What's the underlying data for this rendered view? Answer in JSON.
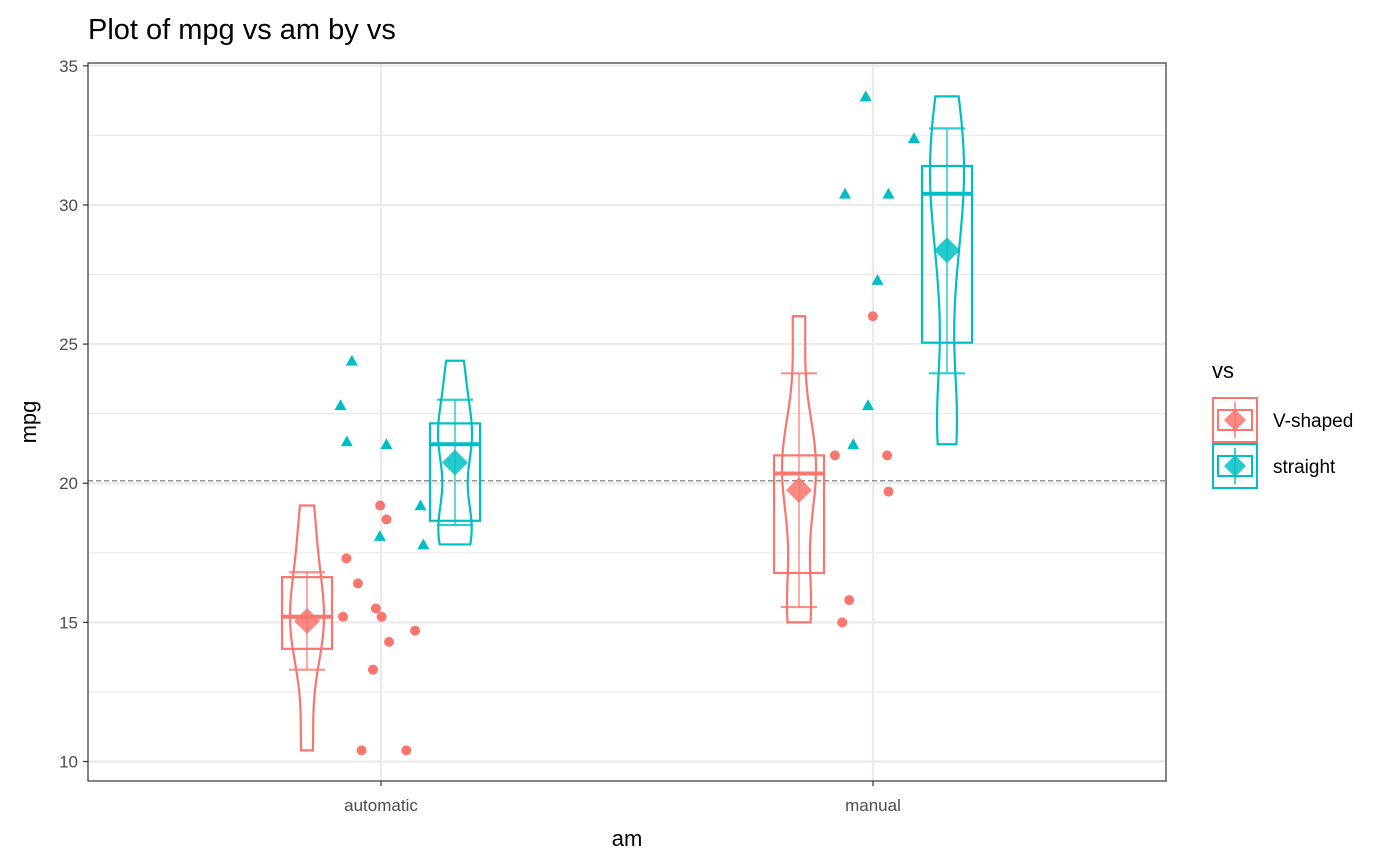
{
  "chart_data": {
    "type": "box-violin-point",
    "title": "Plot of mpg vs am by vs",
    "xlabel": "am",
    "ylabel": "mpg",
    "ylim": [
      9.3,
      35.1
    ],
    "yticks": [
      10,
      15,
      20,
      25,
      30,
      35
    ],
    "categories": [
      "automatic",
      "manual"
    ],
    "reference_line": 20.09,
    "grid": true,
    "legend": {
      "title": "vs",
      "position": "right"
    },
    "series": [
      {
        "name": "V-shaped",
        "color": "#F8766D",
        "marker": "circle",
        "groups": [
          {
            "category": "automatic",
            "box": {
              "q1": 14.05,
              "median": 15.2,
              "q3": 16.625,
              "whisker_low": 13.3,
              "whisker_high": 16.8
            },
            "mean": 15.05,
            "violin": {
              "min": 10.4,
              "max": 19.2
            },
            "points": [
              19.2,
              18.7,
              17.3,
              16.4,
              15.5,
              15.2,
              15.2,
              14.7,
              14.3,
              13.3,
              10.4,
              10.4
            ]
          },
          {
            "category": "manual",
            "box": {
              "q1": 16.775,
              "median": 20.35,
              "q3": 21.0,
              "whisker_low": 15.55,
              "whisker_high": 23.95
            },
            "mean": 19.75,
            "violin": {
              "min": 15.0,
              "max": 26.0
            },
            "points": [
              21.0,
              21.0,
              26.0,
              15.8,
              19.7,
              15.0
            ]
          }
        ]
      },
      {
        "name": "straight",
        "color": "#00BFC4",
        "marker": "triangle",
        "groups": [
          {
            "category": "automatic",
            "box": {
              "q1": 18.65,
              "median": 21.4,
              "q3": 22.15,
              "whisker_low": 18.5,
              "whisker_high": 23.0
            },
            "mean": 20.74,
            "violin": {
              "min": 17.8,
              "max": 24.4
            },
            "points": [
              21.4,
              18.1,
              24.4,
              22.8,
              19.2,
              17.8,
              21.5
            ]
          },
          {
            "category": "manual",
            "box": {
              "q1": 25.05,
              "median": 30.4,
              "q3": 31.4,
              "whisker_low": 23.95,
              "whisker_high": 32.75
            },
            "mean": 28.37,
            "violin": {
              "min": 21.4,
              "max": 33.9
            },
            "points": [
              22.8,
              32.4,
              30.4,
              33.9,
              27.3,
              30.4,
              21.4
            ]
          }
        ]
      }
    ]
  }
}
